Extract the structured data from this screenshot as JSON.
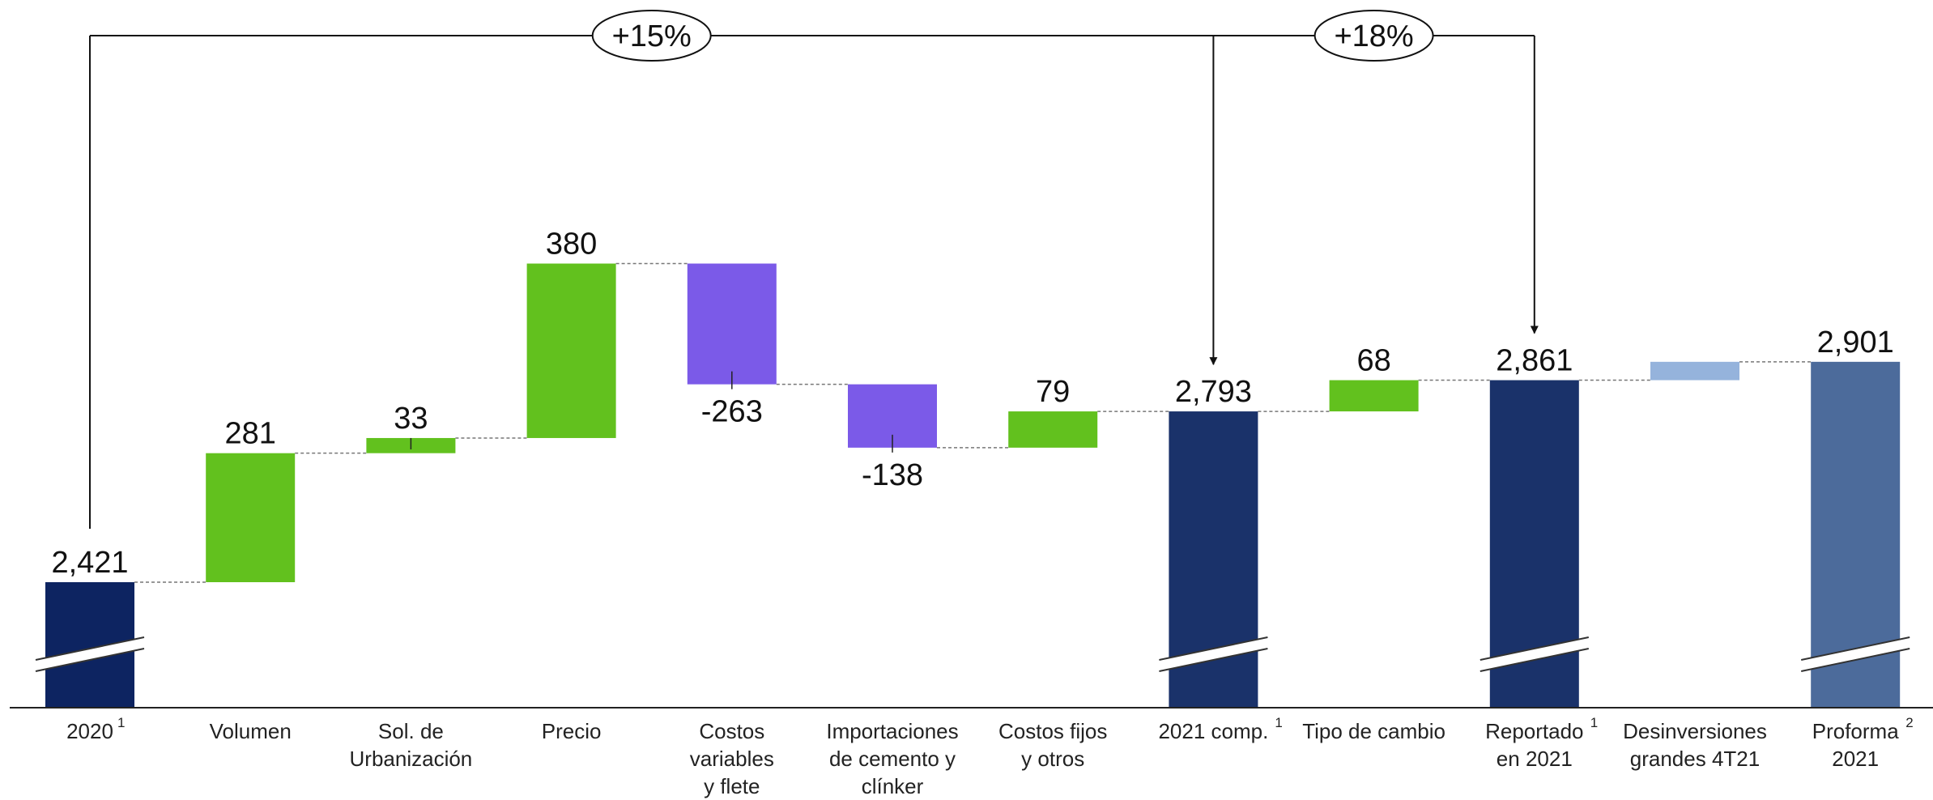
{
  "chart_data": {
    "type": "bar",
    "subtype": "waterfall",
    "title": "",
    "xlabel": "",
    "ylabel": "",
    "ylim": [
      1950,
      3060
    ],
    "axis_break": true,
    "categories": [
      {
        "lines": [
          "2020"
        ],
        "sup": "1"
      },
      {
        "lines": [
          "Volumen"
        ]
      },
      {
        "lines": [
          "Sol. de",
          "Urbanización"
        ]
      },
      {
        "lines": [
          "Precio"
        ]
      },
      {
        "lines": [
          "Costos",
          "variables",
          "y flete"
        ]
      },
      {
        "lines": [
          "Importaciones",
          "de cemento y",
          "clínker"
        ]
      },
      {
        "lines": [
          "Costos fijos",
          "y otros"
        ]
      },
      {
        "lines": [
          "2021 comp."
        ],
        "sup": "1"
      },
      {
        "lines": [
          "Tipo de cambio"
        ]
      },
      {
        "lines": [
          "Reportado",
          "en 2021"
        ],
        "sup": "1"
      },
      {
        "lines": [
          "Desinversiones",
          "grandes 4T21"
        ]
      },
      {
        "lines": [
          "Proforma",
          "2021"
        ],
        "sup": "2"
      }
    ],
    "bars": [
      {
        "kind": "total",
        "value": 2421,
        "label": "2,421",
        "color": "#0d2461",
        "break": true
      },
      {
        "kind": "delta",
        "value": 281,
        "label": "281",
        "color": "#62c11e"
      },
      {
        "kind": "delta",
        "value": 33,
        "label": "33",
        "color": "#62c11e"
      },
      {
        "kind": "delta",
        "value": 380,
        "label": "380",
        "color": "#62c11e"
      },
      {
        "kind": "delta",
        "value": -263,
        "label": "-263",
        "color": "#7b5ae8"
      },
      {
        "kind": "delta",
        "value": -138,
        "label": "-138",
        "color": "#7b5ae8"
      },
      {
        "kind": "delta",
        "value": 79,
        "label": "79",
        "color": "#62c11e"
      },
      {
        "kind": "total",
        "value": 2793,
        "label": "2,793",
        "color": "#1a326a",
        "break": true
      },
      {
        "kind": "delta",
        "value": 68,
        "label": "68",
        "color": "#62c11e"
      },
      {
        "kind": "total",
        "value": 2861,
        "label": "2,861",
        "color": "#1a326a",
        "break": true
      },
      {
        "kind": "delta",
        "value": 40,
        "label": "",
        "color": "#95b3dc"
      },
      {
        "kind": "total",
        "value": 2901,
        "label": "2,901",
        "color": "#4c6b9b",
        "break": true
      }
    ],
    "annotations": [
      {
        "text": "+15%",
        "from_index": 0,
        "to_index": 7
      },
      {
        "text": "+18%",
        "from_index": 0,
        "to_index": 9
      }
    ]
  }
}
